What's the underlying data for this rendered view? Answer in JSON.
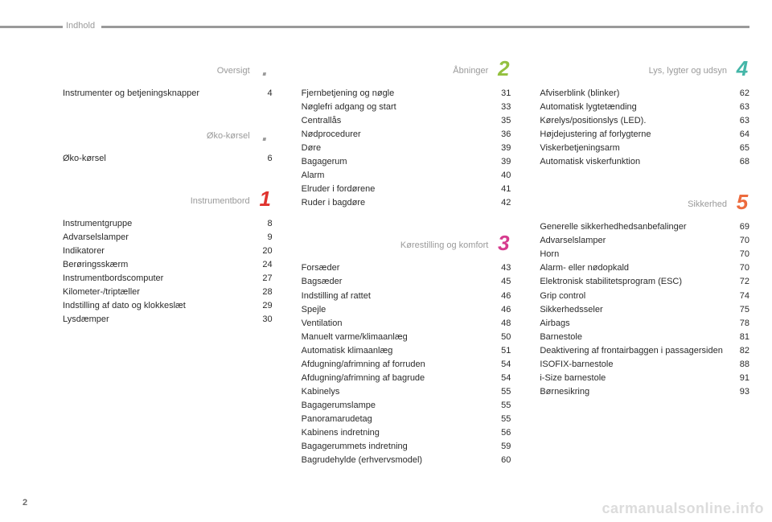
{
  "header": "Indhold",
  "page_number": "2",
  "watermark": "carmanualsonline.info",
  "colors": {
    "grey": "#9a9a9a",
    "yellow": "#d8de4a",
    "red": "#e0332e",
    "green": "#93c03f",
    "magenta": "#d63b8e",
    "teal": "#44b6a8",
    "orange": "#ec6b3e"
  },
  "columns": [
    {
      "sections": [
        {
          "title": "Oversigt",
          "rule_color": "#9a9a9a",
          "number": ".",
          "number_color": "#9a9a9a",
          "entries": [
            {
              "label": "Instrumenter og betjeningsknapper",
              "page": "4"
            }
          ]
        },
        {
          "title": "Øko-kørsel",
          "rule_color": "#d8de4a",
          "number": ".",
          "number_color": "#9a9a9a",
          "entries": [
            {
              "label": "Øko-kørsel",
              "page": "6"
            }
          ]
        },
        {
          "title": "Instrumentbord",
          "rule_color": "#e0332e",
          "number": "1",
          "number_color": "#e0332e",
          "entries": [
            {
              "label": "Instrumentgruppe",
              "page": "8"
            },
            {
              "label": "Advarselslamper",
              "page": "9"
            },
            {
              "label": "Indikatorer",
              "page": "20"
            },
            {
              "label": "Berøringsskærm",
              "page": "24"
            },
            {
              "label": "Instrumentbordscomputer",
              "page": "27"
            },
            {
              "label": "Kilometer-/triptæller",
              "page": "28"
            },
            {
              "label": "Indstilling af dato og klokkeslæt",
              "page": "29"
            },
            {
              "label": "Lysdæmper",
              "page": "30"
            }
          ]
        }
      ]
    },
    {
      "sections": [
        {
          "title": "Åbninger",
          "rule_color": "#93c03f",
          "number": "2",
          "number_color": "#93c03f",
          "entries": [
            {
              "label": "Fjernbetjening og nøgle",
              "page": "31"
            },
            {
              "label": "Nøglefri adgang og start",
              "page": "33"
            },
            {
              "label": "Centrallås",
              "page": "35"
            },
            {
              "label": "Nødprocedurer",
              "page": "36"
            },
            {
              "label": "Døre",
              "page": "39"
            },
            {
              "label": "Bagagerum",
              "page": "39"
            },
            {
              "label": "Alarm",
              "page": "40"
            },
            {
              "label": "Elruder i fordørene",
              "page": "41"
            },
            {
              "label": "Ruder i bagdøre",
              "page": "42"
            }
          ]
        },
        {
          "title": "Kørestilling og komfort",
          "rule_color": "#d63b8e",
          "number": "3",
          "number_color": "#d63b8e",
          "entries": [
            {
              "label": "Forsæder",
              "page": "43"
            },
            {
              "label": "Bagsæder",
              "page": "45"
            },
            {
              "label": "Indstilling af rattet",
              "page": "46"
            },
            {
              "label": "Spejle",
              "page": "46"
            },
            {
              "label": "Ventilation",
              "page": "48"
            },
            {
              "label": "Manuelt varme/klimaanlæg",
              "page": "50"
            },
            {
              "label": "Automatisk klimaanlæg",
              "page": "51"
            },
            {
              "label": "Afdugning/afrimning af forruden",
              "page": "54"
            },
            {
              "label": "Afdugning/afrimning af bagrude",
              "page": "54"
            },
            {
              "label": "Kabinelys",
              "page": "55"
            },
            {
              "label": "Bagagerumslampe",
              "page": "55"
            },
            {
              "label": "Panoramarudetag",
              "page": "55"
            },
            {
              "label": "Kabinens indretning",
              "page": "56"
            },
            {
              "label": "Bagagerummets indretning",
              "page": "59"
            },
            {
              "label": "Bagrudehylde (erhvervsmodel)",
              "page": "60"
            }
          ]
        }
      ]
    },
    {
      "sections": [
        {
          "title": "Lys, lygter og udsyn",
          "rule_color": "#44b6a8",
          "number": "4",
          "number_color": "#44b6a8",
          "entries": [
            {
              "label": "Afviserblink (blinker)",
              "page": "62"
            },
            {
              "label": "Automatisk lygtetænding",
              "page": "63"
            },
            {
              "label": "Kørelys/positionslys (LED).",
              "page": "63"
            },
            {
              "label": "Højdejustering af forlygterne",
              "page": "64"
            },
            {
              "label": "Viskerbetjeningsarm",
              "page": "65"
            },
            {
              "label": "Automatisk viskerfunktion",
              "page": "68"
            }
          ]
        },
        {
          "title": "Sikkerhed",
          "rule_color": "#ec6b3e",
          "number": "5",
          "number_color": "#ec6b3e",
          "entries": [
            {
              "label": "Generelle sikkerhedhedsanbefalinger",
              "page": "69"
            },
            {
              "label": "Advarselslamper",
              "page": "70"
            },
            {
              "label": "Horn",
              "page": "70"
            },
            {
              "label": "Alarm- eller nødopkald",
              "page": "70"
            },
            {
              "label": "Elektronisk stabilitetsprogram (ESC)",
              "page": "72"
            },
            {
              "label": "Grip control",
              "page": "74"
            },
            {
              "label": "Sikkerhedsseler",
              "page": "75"
            },
            {
              "label": "Airbags",
              "page": "78"
            },
            {
              "label": "Barnestole",
              "page": "81"
            },
            {
              "label": "Deaktivering af frontairbaggen i passagersiden",
              "page": "82"
            },
            {
              "label": "ISOFIX-barnestole",
              "page": "88"
            },
            {
              "label": "i-Size barnestole",
              "page": "91"
            },
            {
              "label": "Børnesikring",
              "page": "93"
            }
          ]
        }
      ]
    }
  ]
}
